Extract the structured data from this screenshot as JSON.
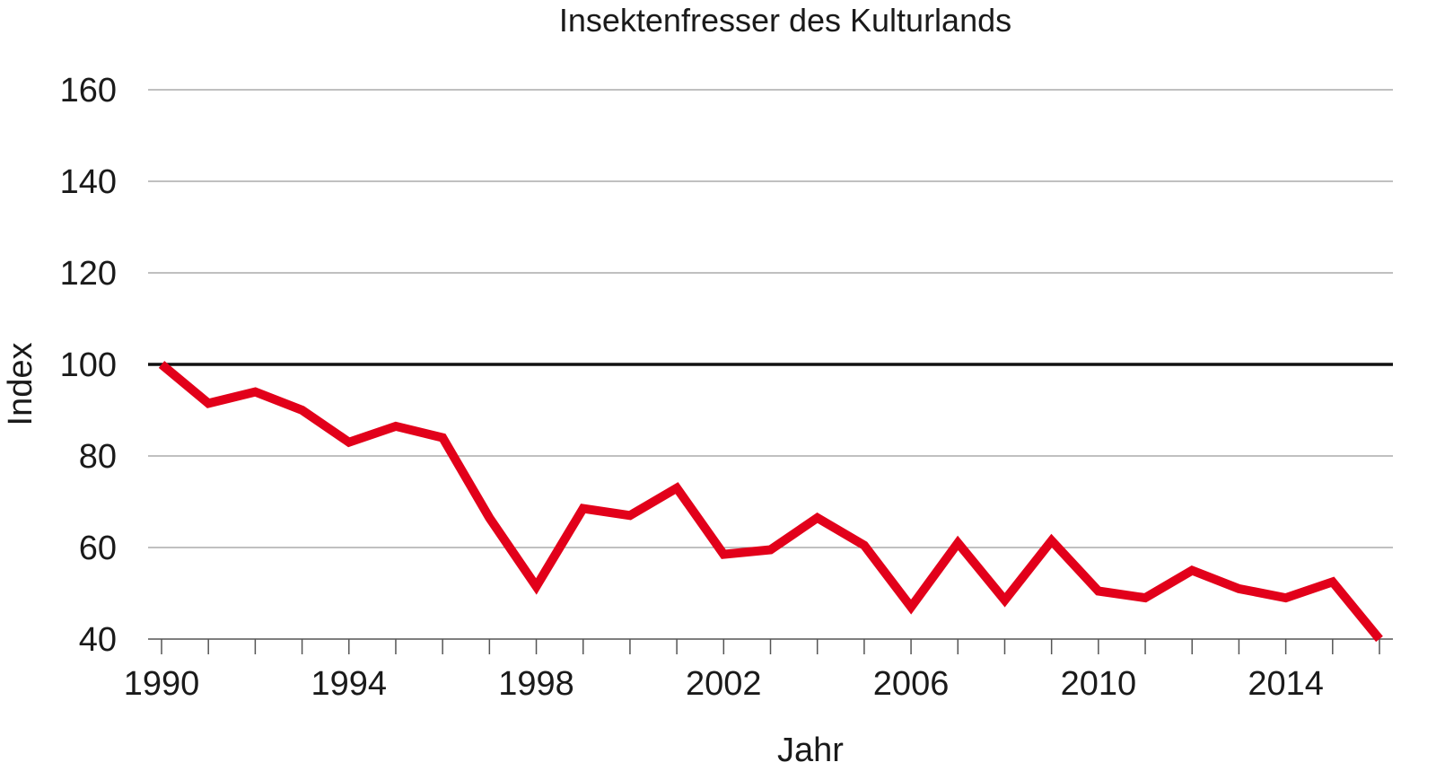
{
  "chart_data": {
    "type": "line",
    "title": "Insektenfresser des Kulturlands",
    "xlabel": "Jahr",
    "ylabel": "Index",
    "xlim": [
      1990,
      2016
    ],
    "ylim": [
      40,
      160
    ],
    "y_ticks": [
      40,
      60,
      80,
      100,
      120,
      140,
      160
    ],
    "x_tick_labels": [
      1990,
      1994,
      1998,
      2002,
      2006,
      2010,
      2014
    ],
    "reference_line": 100,
    "grid": "horizontal",
    "x": [
      1990,
      1991,
      1992,
      1993,
      1994,
      1995,
      1996,
      1997,
      1998,
      1999,
      2000,
      2001,
      2002,
      2003,
      2004,
      2005,
      2006,
      2007,
      2008,
      2009,
      2010,
      2011,
      2012,
      2013,
      2014,
      2015,
      2016
    ],
    "series": [
      {
        "color": "#e2001a",
        "values": [
          100,
          91.5,
          94,
          90,
          83,
          86.5,
          84,
          66.5,
          51.5,
          68.5,
          67,
          73,
          58.5,
          59.5,
          66.5,
          60.5,
          47,
          61,
          48.5,
          61.5,
          50.5,
          49,
          55,
          51,
          49,
          52.5,
          40
        ]
      }
    ]
  }
}
